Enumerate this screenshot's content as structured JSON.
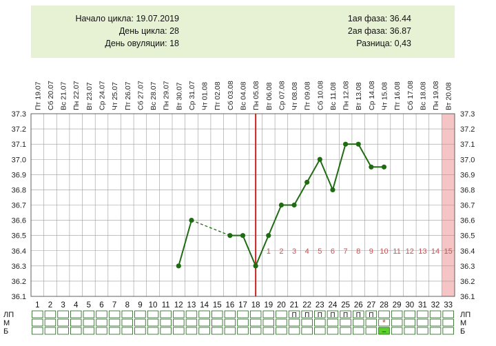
{
  "summary": {
    "cycle_start": "Начало цикла: 19.07.2019",
    "cycle_day": "День цикла: 28",
    "ovulation_day": "День овуляции: 18",
    "phase1": "1ая фаза: 36.44",
    "phase2": "2ая фаза: 36.87",
    "difference": "Разница: 0,43"
  },
  "chart_data": {
    "type": "line",
    "title": "",
    "xlabel": "",
    "ylabel": "",
    "dates": [
      "Пт 19.07",
      "Сб 20.07",
      "Вс 21.07",
      "Пн 22.07",
      "Вт 23.07",
      "Ср 24.07",
      "Чт 25.07",
      "Пт 26.07",
      "Сб 27.07",
      "Вс 28.07",
      "Пн 29.07",
      "Вт 30.07",
      "Ср 31.07",
      "Чт 01.08",
      "Пт 02.08",
      "Сб 03.08",
      "Вс 04.08",
      "Пн 05.08",
      "Вт 06.08",
      "Ср 07.08",
      "Чт 08.08",
      "Пт 09.08",
      "Сб 10.08",
      "Вс 11.08",
      "Пн 12.08",
      "Вт 13.08",
      "Ср 14.08",
      "Чт 15.08",
      "Пт 16.08",
      "Сб 17.08",
      "Вс 18.08",
      "Пн 19.08",
      "Вт 20.08"
    ],
    "days": [
      1,
      2,
      3,
      4,
      5,
      6,
      7,
      8,
      9,
      10,
      11,
      12,
      13,
      14,
      15,
      16,
      17,
      18,
      19,
      20,
      21,
      22,
      23,
      24,
      25,
      26,
      27,
      28,
      29,
      30,
      31,
      32,
      33
    ],
    "ylim": [
      36.1,
      37.3
    ],
    "y_ticks": [
      "37.3",
      "37.2",
      "37.1",
      "37.0",
      "36.9",
      "36.8",
      "36.7",
      "36.6",
      "36.5",
      "36.4",
      "36.3",
      "36.2",
      "36.1"
    ],
    "series": [
      {
        "values": [
          null,
          null,
          null,
          null,
          null,
          null,
          null,
          null,
          null,
          null,
          null,
          36.3,
          36.6,
          null,
          null,
          36.5,
          36.5,
          36.3,
          36.5,
          36.7,
          36.7,
          36.85,
          37.0,
          36.8,
          37.1,
          37.1,
          36.95,
          36.95,
          null,
          null,
          null,
          null,
          null
        ],
        "color": "#1f6b12"
      }
    ],
    "dashed_gap": [
      13,
      16
    ],
    "ovulation_line_day": 18,
    "ovulation_line_color": "#d21f1f",
    "luteal_day_labels": [
      "1",
      "2",
      "3",
      "4",
      "5",
      "6",
      "7",
      "8",
      "9",
      "10",
      "11",
      "12",
      "13",
      "14",
      "15"
    ],
    "luteal_label_color": "#c85050",
    "highlight_day": 33,
    "highlight_color": "#f5c5c5",
    "grid": true,
    "bottom_rows": [
      {
        "label": "ЛП",
        "marks": {
          "21": "П",
          "22": "П",
          "23": "П",
          "24": "П",
          "25": "П",
          "26": "П",
          "27": "П"
        }
      },
      {
        "label": "М",
        "marks": {
          "28": "*"
        }
      },
      {
        "label": "Б",
        "marks": {
          "28": "–"
        }
      }
    ],
    "mark_star_color": "#d23030",
    "mark_green_fill": "#5ed12e"
  }
}
